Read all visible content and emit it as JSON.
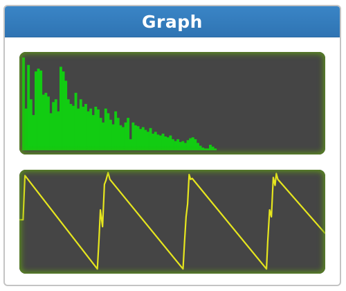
{
  "panel": {
    "title": "Graph"
  },
  "graphs": {
    "spectrum": {
      "type": "bar",
      "color": "#12cc12",
      "background": "#454545",
      "glow_color": "#5f9619",
      "values": [
        1.0,
        0.45,
        0.92,
        0.55,
        0.38,
        0.85,
        0.88,
        0.86,
        0.6,
        0.62,
        0.58,
        0.4,
        0.52,
        0.55,
        0.42,
        0.9,
        0.85,
        0.75,
        0.55,
        0.5,
        0.48,
        0.62,
        0.45,
        0.55,
        0.47,
        0.5,
        0.42,
        0.45,
        0.38,
        0.47,
        0.44,
        0.35,
        0.3,
        0.45,
        0.4,
        0.33,
        0.28,
        0.42,
        0.35,
        0.27,
        0.25,
        0.3,
        0.35,
        0.12,
        0.3,
        0.27,
        0.26,
        0.23,
        0.25,
        0.22,
        0.2,
        0.24,
        0.18,
        0.2,
        0.17,
        0.16,
        0.18,
        0.15,
        0.14,
        0.16,
        0.12,
        0.1,
        0.12,
        0.09,
        0.1,
        0.08,
        0.11,
        0.13,
        0.14,
        0.12,
        0.08,
        0.05,
        0.03,
        0.02,
        0.02,
        0.06,
        0.04,
        0.02,
        0.0,
        0.0,
        0.0,
        0.0,
        0.0,
        0.0,
        0.0,
        0.0,
        0.0,
        0.0
      ]
    },
    "waveform": {
      "type": "line",
      "color": "#e6e61e",
      "background": "#454545",
      "glow_color": "#5f9619",
      "points": [
        [
          0,
          0.52
        ],
        [
          0.012,
          0.52
        ],
        [
          0.018,
          0.97
        ],
        [
          0.255,
          0.02
        ],
        [
          0.26,
          0.3
        ],
        [
          0.265,
          0.62
        ],
        [
          0.272,
          0.45
        ],
        [
          0.278,
          0.88
        ],
        [
          0.283,
          0.92
        ],
        [
          0.29,
          1.0
        ],
        [
          0.296,
          0.93
        ],
        [
          0.535,
          0.02
        ],
        [
          0.54,
          0.3
        ],
        [
          0.545,
          0.55
        ],
        [
          0.55,
          0.68
        ],
        [
          0.555,
          0.98
        ],
        [
          0.56,
          0.93
        ],
        [
          0.565,
          0.94
        ],
        [
          0.808,
          0.02
        ],
        [
          0.812,
          0.3
        ],
        [
          0.818,
          0.62
        ],
        [
          0.824,
          0.55
        ],
        [
          0.83,
          0.95
        ],
        [
          0.836,
          0.87
        ],
        [
          0.84,
          0.99
        ],
        [
          0.845,
          0.93
        ],
        [
          1.0,
          0.38
        ]
      ]
    }
  }
}
